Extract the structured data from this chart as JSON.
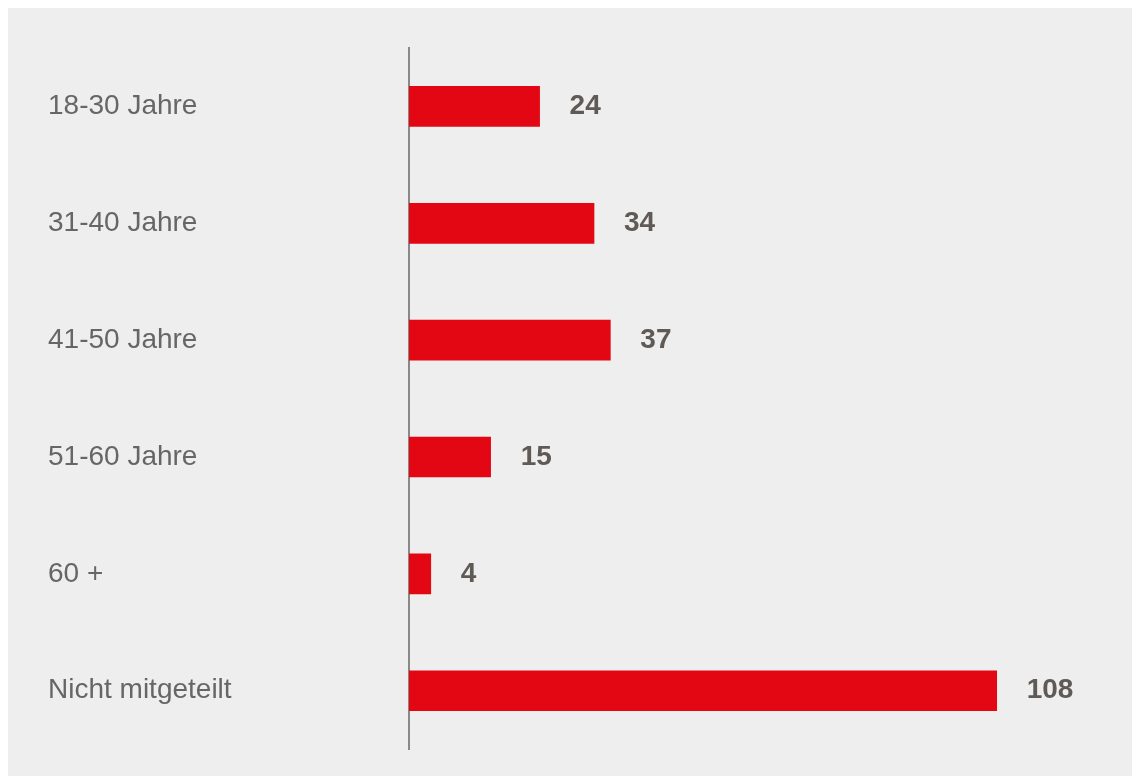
{
  "chart_data": {
    "type": "bar",
    "orientation": "horizontal",
    "categories": [
      "18-30 Jahre",
      "31-40 Jahre",
      "41-50 Jahre",
      "51-60 Jahre",
      "60 +",
      "Nicht mitgeteilt"
    ],
    "values": [
      24,
      34,
      37,
      15,
      4,
      108
    ],
    "color": "#e30613",
    "data_labels": true
  }
}
